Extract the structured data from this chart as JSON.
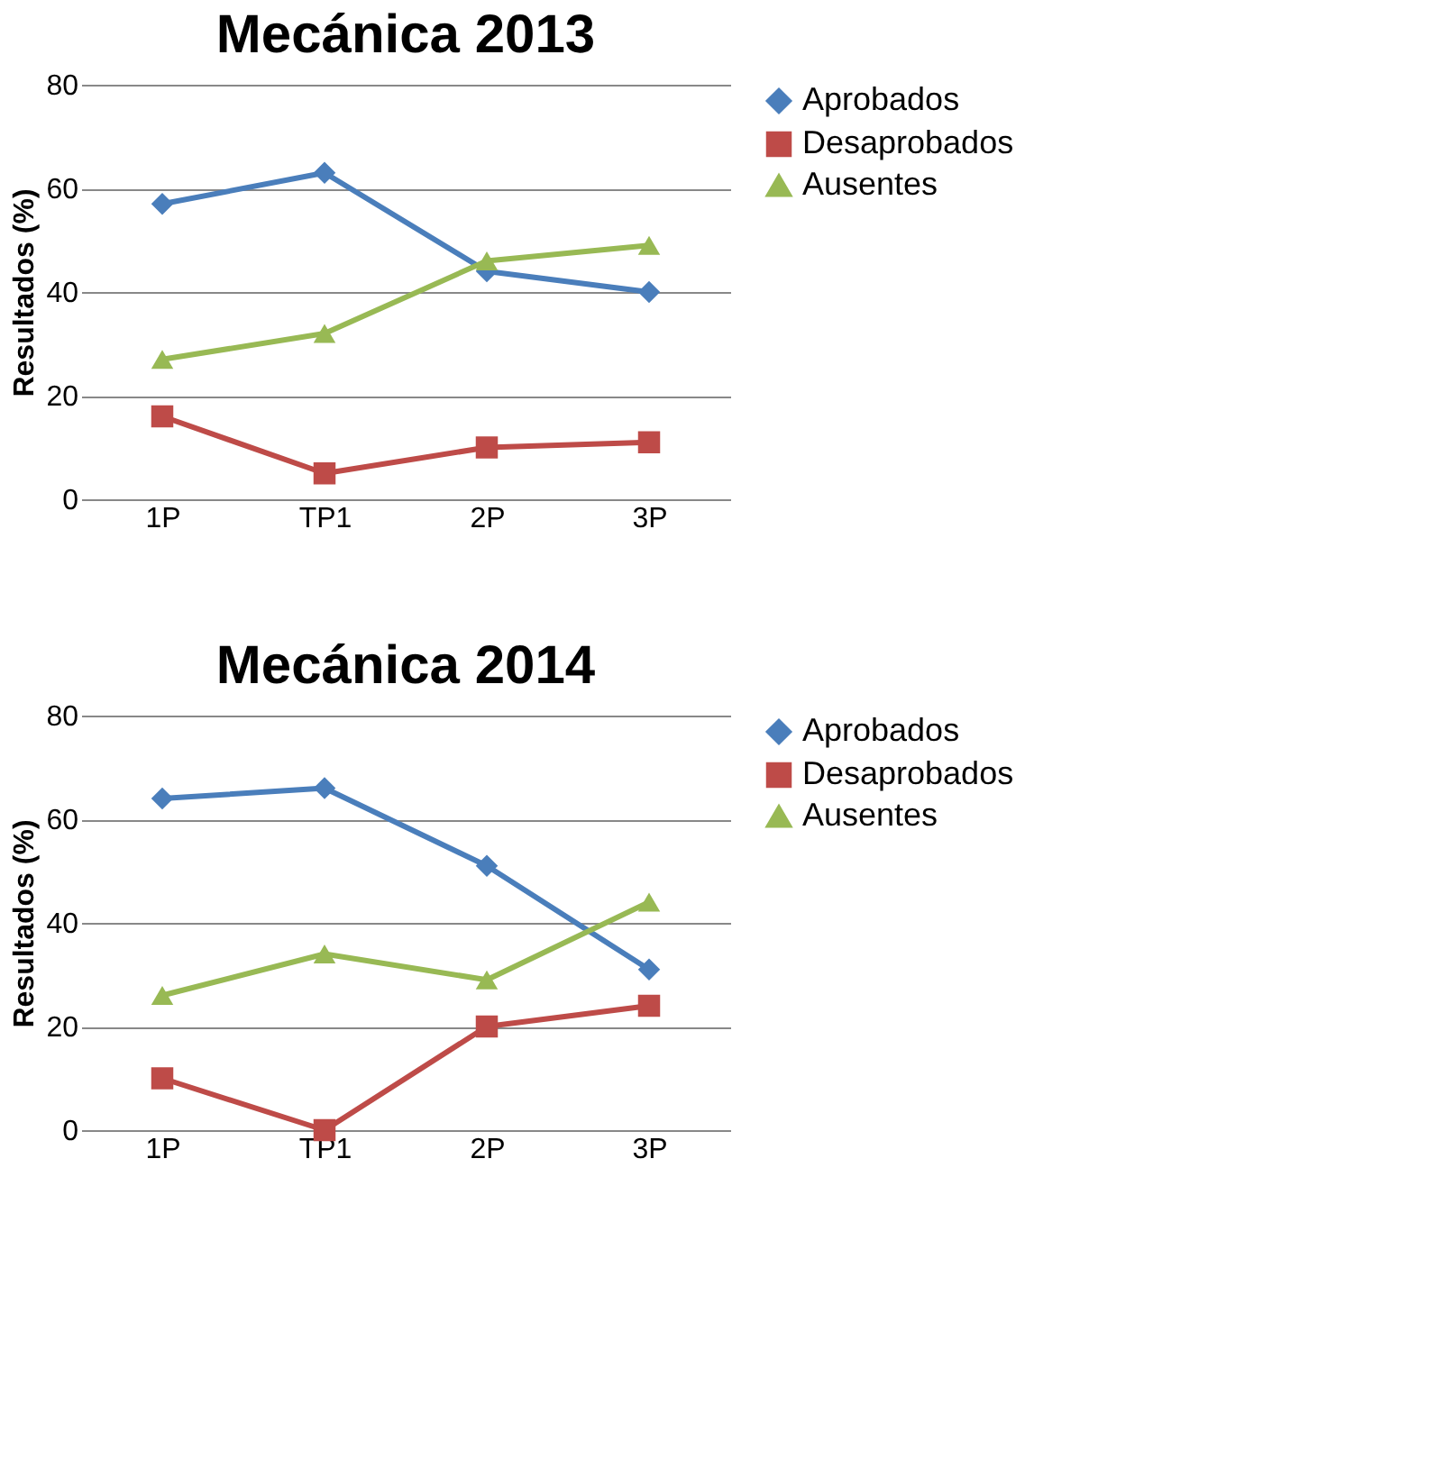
{
  "chart_data": [
    {
      "type": "line",
      "title": "Mecánica 2013",
      "ylabel": "Resultados (%)",
      "categories": [
        "1P",
        "TP1",
        "2P",
        "3P"
      ],
      "ylim": [
        0,
        80
      ],
      "yticks": [
        0,
        20,
        40,
        60,
        80
      ],
      "grid": "y",
      "legend": "right",
      "line_style": "solid",
      "series": [
        {
          "name": "Aprobados",
          "color": "#4a7ebb",
          "marker": "diamond",
          "values": [
            57,
            63,
            44,
            40
          ]
        },
        {
          "name": "Desaprobados",
          "color": "#be4b48",
          "marker": "square",
          "values": [
            16,
            5,
            10,
            11
          ]
        },
        {
          "name": "Ausentes",
          "color": "#98b954",
          "marker": "triangle",
          "values": [
            27,
            32,
            46,
            49
          ]
        }
      ]
    },
    {
      "type": "line",
      "title": "Mecánica 2014",
      "ylabel": "Resultados (%)",
      "categories": [
        "1P",
        "TP1",
        "2P",
        "3P"
      ],
      "ylim": [
        0,
        80
      ],
      "yticks": [
        0,
        20,
        40,
        60,
        80
      ],
      "grid": "y",
      "legend": "right",
      "line_style": "solid",
      "series": [
        {
          "name": "Aprobados",
          "color": "#4a7ebb",
          "marker": "diamond",
          "values": [
            64,
            66,
            51,
            31
          ]
        },
        {
          "name": "Desaprobados",
          "color": "#be4b48",
          "marker": "square",
          "values": [
            10,
            0,
            20,
            24
          ]
        },
        {
          "name": "Ausentes",
          "color": "#98b954",
          "marker": "triangle",
          "values": [
            26,
            34,
            29,
            44
          ]
        }
      ]
    }
  ]
}
